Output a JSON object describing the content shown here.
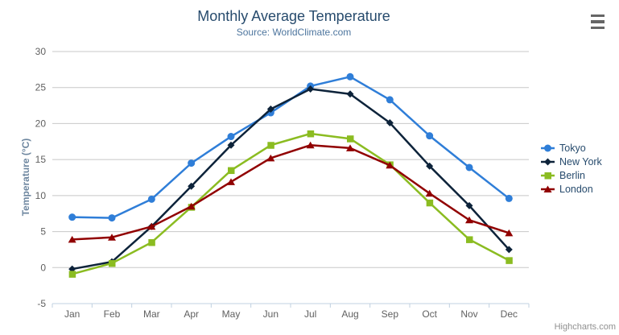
{
  "header": {
    "title": "Monthly Average Temperature",
    "subtitle": "Source: WorldClimate.com"
  },
  "export_menu": {
    "icon": "hamburger-menu-icon"
  },
  "credit_label": "Highcharts.com",
  "colors": {
    "title": "#274b6d",
    "subtitle": "#4d759e",
    "axis_title": "#6d869f",
    "tick_label": "#606060",
    "gridline": "#c8c8c8",
    "axis_line": "#c0d0e0",
    "legend_text": "#274b6d",
    "credit": "#909090"
  },
  "chart_data": {
    "type": "line",
    "title": "Monthly Average Temperature",
    "subtitle": "Source: WorldClimate.com",
    "xlabel": "",
    "ylabel": "Temperature (°C)",
    "categories": [
      "Jan",
      "Feb",
      "Mar",
      "Apr",
      "May",
      "Jun",
      "Jul",
      "Aug",
      "Sep",
      "Oct",
      "Nov",
      "Dec"
    ],
    "ylim": [
      -5,
      30
    ],
    "ytick_step": 5,
    "yticks": [
      -5,
      0,
      5,
      10,
      15,
      20,
      25,
      30
    ],
    "grid": true,
    "legend_position": "right-middle",
    "series": [
      {
        "name": "Tokyo",
        "color": "#2f7ed8",
        "marker": "circle",
        "values": [
          7.0,
          6.9,
          9.5,
          14.5,
          18.2,
          21.5,
          25.2,
          26.5,
          23.3,
          18.3,
          13.9,
          9.6
        ]
      },
      {
        "name": "New York",
        "color": "#0d233a",
        "marker": "diamond",
        "values": [
          -0.2,
          0.8,
          5.7,
          11.3,
          17.0,
          22.0,
          24.8,
          24.1,
          20.1,
          14.1,
          8.6,
          2.5
        ]
      },
      {
        "name": "Berlin",
        "color": "#8bbc21",
        "marker": "square",
        "values": [
          -0.9,
          0.6,
          3.5,
          8.4,
          13.5,
          17.0,
          18.6,
          17.9,
          14.3,
          9.0,
          3.9,
          1.0
        ]
      },
      {
        "name": "London",
        "color": "#910000",
        "marker": "triangle",
        "values": [
          3.9,
          4.2,
          5.7,
          8.5,
          11.9,
          15.2,
          17.0,
          16.6,
          14.2,
          10.3,
          6.6,
          4.8
        ]
      }
    ]
  }
}
